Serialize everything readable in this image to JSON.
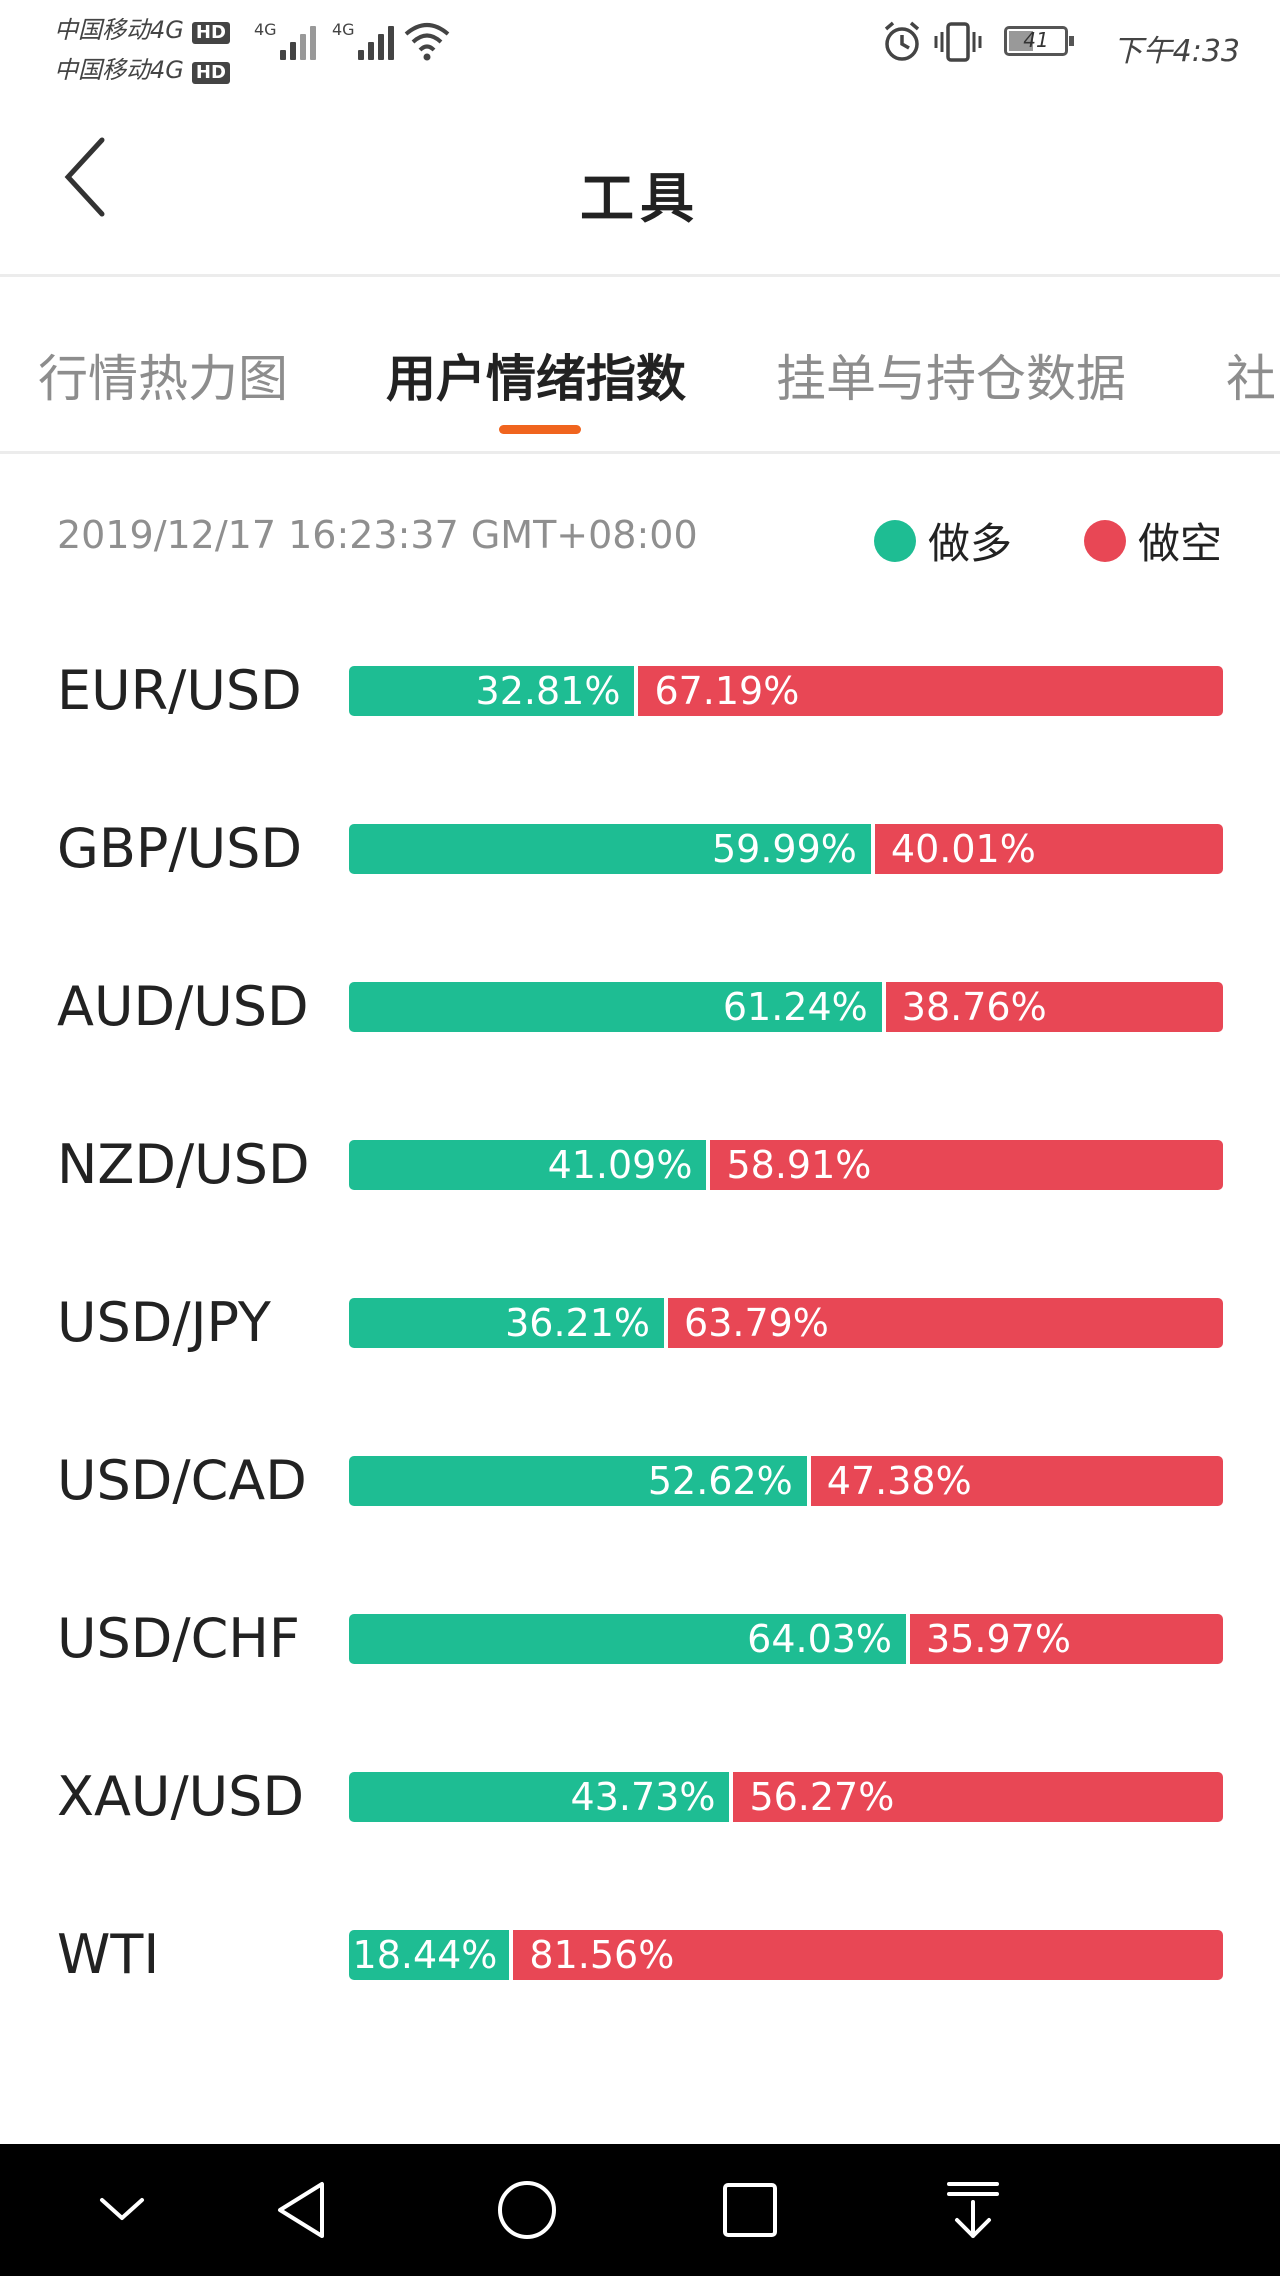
{
  "status_bar": {
    "carrier_1": "中国移动4G",
    "carrier_2": "中国移动4G",
    "hd_label": "HD",
    "network_1": "4G",
    "network_2": "4G",
    "battery": "41",
    "time": "下午4:33"
  },
  "header": {
    "title": "工具"
  },
  "tabs": [
    {
      "label": "行情热力图",
      "active": false
    },
    {
      "label": "用户情绪指数",
      "active": true
    },
    {
      "label": "挂单与持仓数据",
      "active": false
    },
    {
      "label": "社",
      "active": false
    }
  ],
  "accent_color": "#f0641e",
  "timestamp": "2019/12/17 16:23:37 GMT+08:00",
  "legend": {
    "long_label": "做多",
    "short_label": "做空",
    "long_color": "#1ebd93",
    "short_color": "#e84755"
  },
  "sentiment": [
    {
      "pair": "EUR/USD",
      "long": "32.81%",
      "short": "67.19%",
      "long_value": 32.81
    },
    {
      "pair": "GBP/USD",
      "long": "59.99%",
      "short": "40.01%",
      "long_value": 59.99
    },
    {
      "pair": "AUD/USD",
      "long": "61.24%",
      "short": "38.76%",
      "long_value": 61.24
    },
    {
      "pair": "NZD/USD",
      "long": "41.09%",
      "short": "58.91%",
      "long_value": 41.09
    },
    {
      "pair": "USD/JPY",
      "long": "36.21%",
      "short": "63.79%",
      "long_value": 36.21
    },
    {
      "pair": "USD/CAD",
      "long": "52.62%",
      "short": "47.38%",
      "long_value": 52.62
    },
    {
      "pair": "USD/CHF",
      "long": "64.03%",
      "short": "35.97%",
      "long_value": 64.03
    },
    {
      "pair": "XAU/USD",
      "long": "43.73%",
      "short": "56.27%",
      "long_value": 43.73
    },
    {
      "pair": "WTI",
      "long": "18.44%",
      "short": "81.56%",
      "long_value": 18.44
    }
  ],
  "nav_bar": {
    "icons": [
      "chevron-down-icon",
      "back-triangle-icon",
      "home-circle-icon",
      "recents-square-icon",
      "download-icon"
    ]
  }
}
